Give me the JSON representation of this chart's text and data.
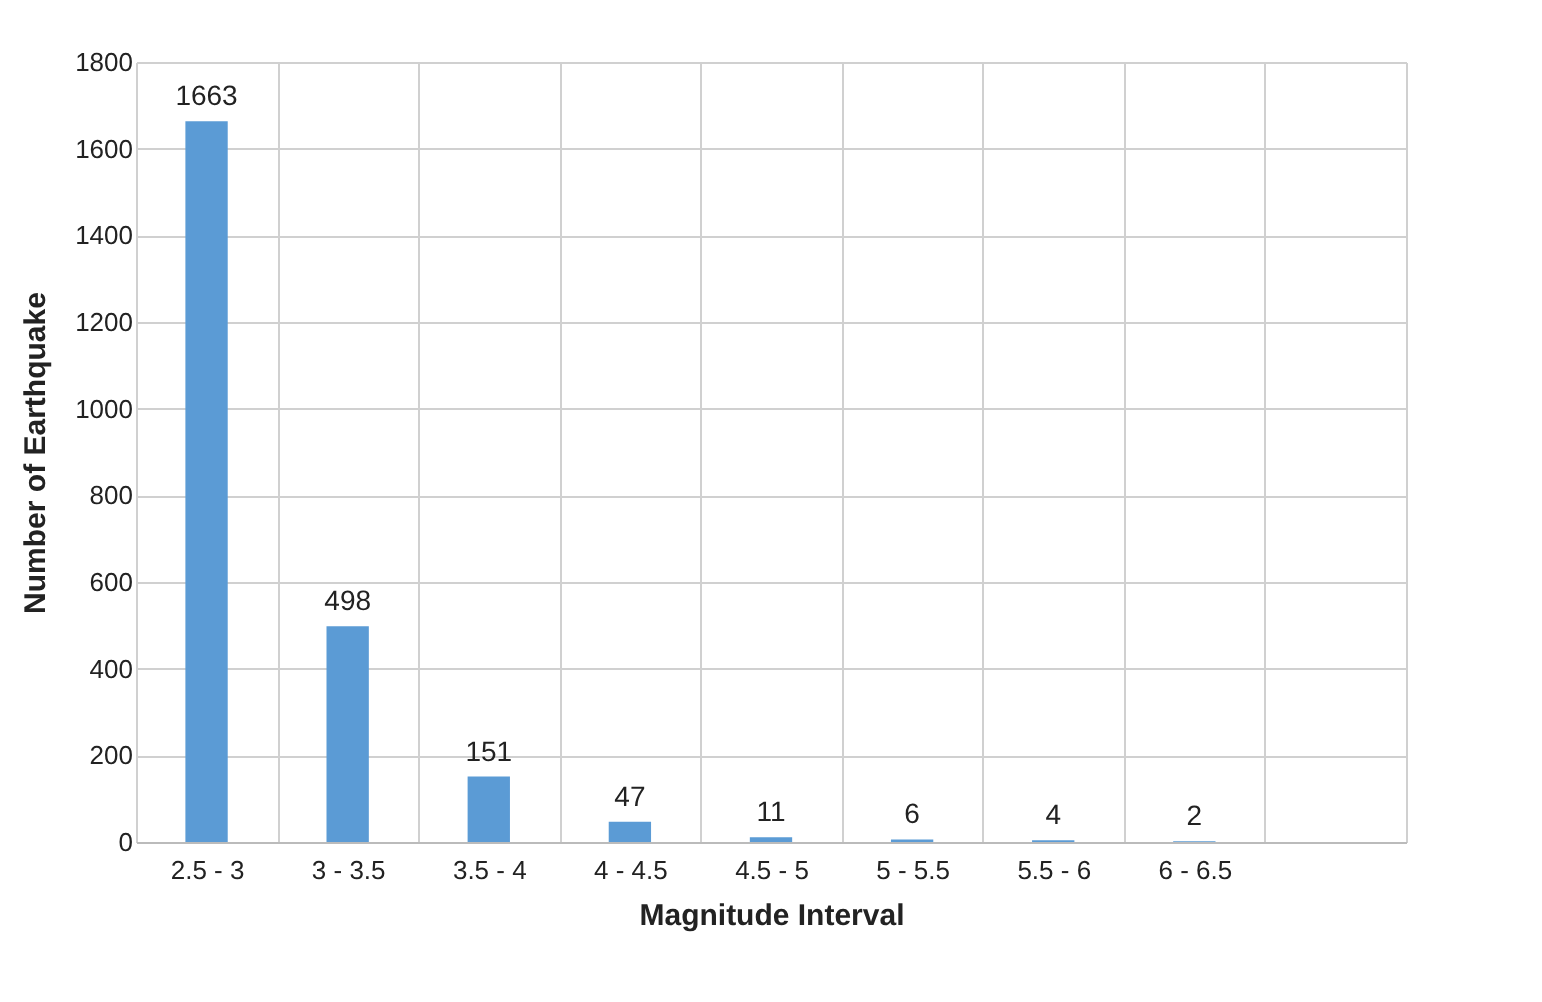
{
  "chart_data": {
    "type": "bar",
    "xlabel": "Magnitude Interval",
    "ylabel": "Number of Earthquake",
    "categories": [
      "2.5 - 3",
      "3 - 3.5",
      "3.5 - 4",
      "4 - 4.5",
      "4.5 - 5",
      "5 - 5.5",
      "5.5 - 6",
      "6 - 6.5",
      null
    ],
    "values": [
      1663,
      498,
      151,
      47,
      11,
      6,
      4,
      2,
      null
    ],
    "color": "#5b9bd5",
    "ylim": [
      0,
      1800
    ],
    "yticks": [
      0,
      200,
      400,
      600,
      800,
      1000,
      1200,
      1400,
      1600,
      1800
    ],
    "grid": true,
    "data_labels": true
  }
}
